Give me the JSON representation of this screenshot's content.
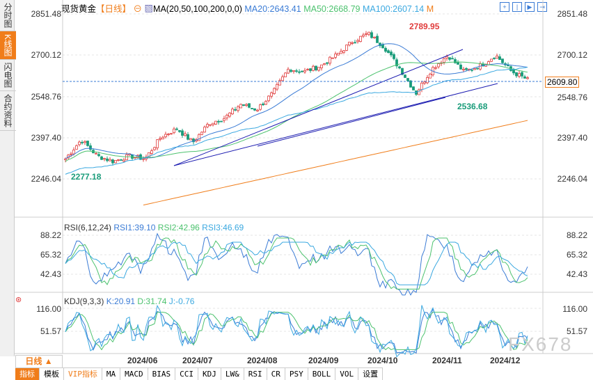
{
  "sidebar": [
    "分时图",
    "K线图",
    "闪电图",
    "合约资料"
  ],
  "header": {
    "symbol": "现货黄金",
    "period": "【日线】",
    "ma_label": "MA(20,50,100,200,0,0)",
    "ma20": "MA20:2643.41",
    "ma50": "MA50:2668.79",
    "ma100": "MA100:2607.14",
    "ma200": "M"
  },
  "price_axis": [
    "2851.48",
    "2700.12",
    "2548.76",
    "2397.40",
    "2246.04"
  ],
  "current_price": "2609.80",
  "annotations": {
    "high": "2789.95",
    "low_mid": "2536.68",
    "low_start": "2277.18"
  },
  "rsi": {
    "title": "RSI(6,12,24)",
    "rsi1": "RSI1:39.10",
    "rsi2": "RSI2:42.96",
    "rsi3": "RSI3:46.69",
    "axis": [
      "88.22",
      "65.32",
      "42.43"
    ]
  },
  "kdj": {
    "title": "KDJ(9,3,3)",
    "k": "K:20.91",
    "d": "D:31.74",
    "j": "J:-0.76",
    "axis": [
      "116.00",
      "51.57"
    ]
  },
  "dates": [
    "2024/06",
    "2024/07",
    "2024/08",
    "2024/09",
    "2024/10",
    "2024/11",
    "2024/12"
  ],
  "period_button": "日线 ▲",
  "tabs": [
    "指标",
    "模板",
    "VIP指标",
    "MA",
    "MACD",
    "BIAS",
    "CCI",
    "KDJ",
    "LW&",
    "RSI",
    "CR",
    "PSY",
    "BOLL",
    "VOL",
    "设置"
  ],
  "watermark": "FX678",
  "colors": {
    "up": "#e03c3c",
    "down": "#1a9c7a",
    "ma20": "#3a7bd5",
    "ma50": "#4cc26e",
    "ma100": "#3aa8e0",
    "ma200": "#f07d1a"
  },
  "chart_data": {
    "type": "candlestick",
    "ylim": [
      2246.04,
      2851.48
    ],
    "close_path": [
      2320,
      2390,
      2330,
      2310,
      2330,
      2320,
      2400,
      2430,
      2380,
      2450,
      2470,
      2520,
      2500,
      2560,
      2650,
      2640,
      2660,
      2700,
      2750,
      2780,
      2730,
      2650,
      2560,
      2650,
      2700,
      2640,
      2660,
      2700,
      2640,
      2610
    ]
  }
}
